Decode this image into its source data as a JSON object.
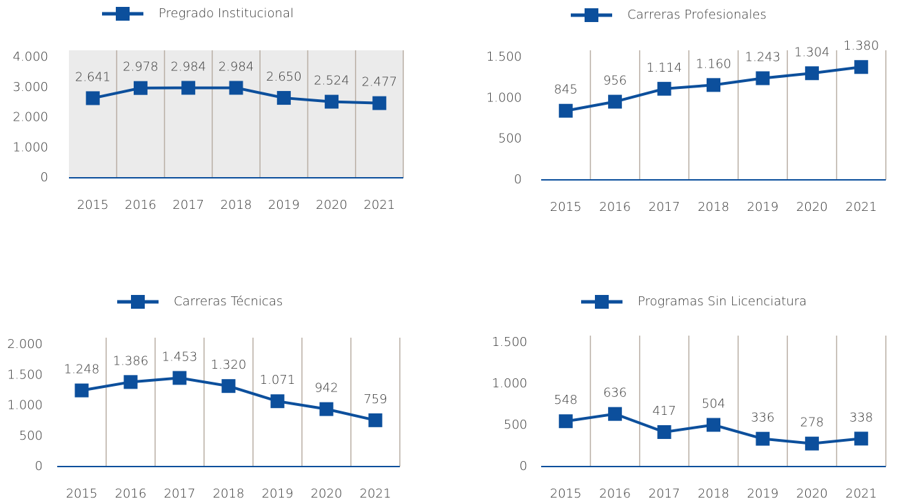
{
  "chart_data": [
    {
      "type": "line",
      "background": "#ebebeb",
      "categories": [
        "2015",
        "2016",
        "2017",
        "2018",
        "2019",
        "2020",
        "2021"
      ],
      "series": [
        {
          "name": "Pregrado Institucional",
          "color": "#0c4f9c",
          "values": [
            2641,
            2978,
            2984,
            2984,
            2650,
            2524,
            2477
          ],
          "value_labels": [
            "2.641",
            "2.978",
            "2.984",
            "2.984",
            "2.650",
            "2.524",
            "2.477"
          ]
        }
      ],
      "ylim": [
        0,
        4000
      ],
      "yticks": [
        0,
        {
          "value": 1000,
          "label": "1.000"
        },
        {
          "value": 2000,
          "label": "2.000"
        },
        {
          "value": 3000,
          "label": "3.000"
        },
        {
          "value": 4000,
          "label": "4.000"
        }
      ]
    },
    {
      "type": "line",
      "categories": [
        "2015",
        "2016",
        "2017",
        "2018",
        "2019",
        "2020",
        "2021"
      ],
      "series": [
        {
          "name": "Carreras Profesionales",
          "color": "#0c4f9c",
          "values": [
            845,
            956,
            1114,
            1160,
            1243,
            1304,
            1380
          ],
          "value_labels": [
            "845",
            "956",
            "1.114",
            "1.160",
            "1.243",
            "1.304",
            "1.380"
          ]
        }
      ],
      "ylim": [
        0,
        1500
      ],
      "yticks": [
        0,
        500,
        {
          "value": 1000,
          "label": "1.000"
        },
        {
          "value": 1500,
          "label": "1.500"
        }
      ]
    },
    {
      "type": "line",
      "categories": [
        "2015",
        "2016",
        "2017",
        "2018",
        "2019",
        "2020",
        "2021"
      ],
      "series": [
        {
          "name": "Carreras Técnicas",
          "color": "#0c4f9c",
          "values": [
            1248,
            1386,
            1453,
            1320,
            1071,
            942,
            759
          ],
          "value_labels": [
            "1.248",
            "1.386",
            "1.453",
            "1.320",
            "1.071",
            "942",
            "759"
          ]
        }
      ],
      "ylim": [
        0,
        2000
      ],
      "yticks": [
        0,
        500,
        {
          "value": 1000,
          "label": "1.000"
        },
        {
          "value": 1500,
          "label": "1.500"
        },
        {
          "value": 2000,
          "label": "2.000"
        }
      ]
    },
    {
      "type": "line",
      "categories": [
        "2015",
        "2016",
        "2017",
        "2018",
        "2019",
        "2020",
        "2021"
      ],
      "series": [
        {
          "name": "Programas Sin Licenciatura",
          "color": "#0c4f9c",
          "values": [
            548,
            636,
            417,
            504,
            336,
            278,
            338
          ]
        }
      ],
      "ylim": [
        0,
        1500
      ],
      "yticks": [
        0,
        500,
        {
          "value": 1000,
          "label": "1.000"
        },
        {
          "value": 1500,
          "label": "1.500"
        }
      ]
    }
  ]
}
